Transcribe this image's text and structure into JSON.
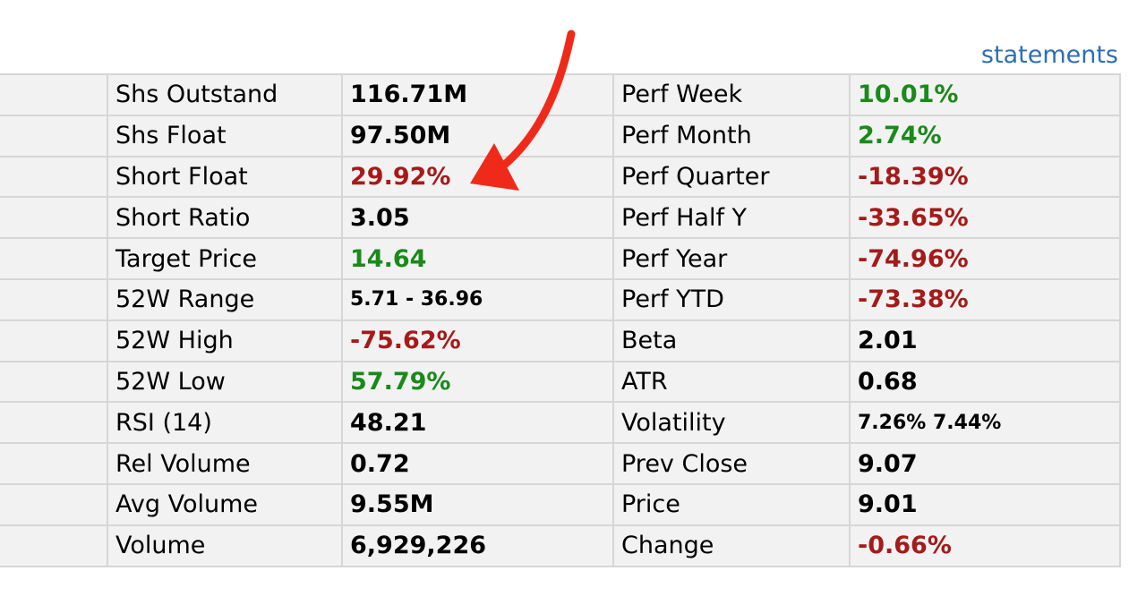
{
  "link": {
    "statements_label": "statements"
  },
  "colors": {
    "positive": "#1a8a1a",
    "negative": "#a51a1a",
    "link": "#2d6fb0",
    "annotation_arrow": "#f02a1a"
  },
  "annotation": {
    "icon": "red-arrow-icon",
    "points_to": "Short Float"
  },
  "rows": [
    {
      "label1": "Shs Outstand",
      "value1": "116.71M",
      "tone1": "",
      "label2": "Perf Week",
      "value2": "10.01%",
      "tone2": "pos"
    },
    {
      "label1": "Shs Float",
      "value1": "97.50M",
      "tone1": "",
      "label2": "Perf Month",
      "value2": "2.74%",
      "tone2": "pos"
    },
    {
      "label1": "Short Float",
      "value1": "29.92%",
      "tone1": "neg",
      "label2": "Perf Quarter",
      "value2": "-18.39%",
      "tone2": "neg"
    },
    {
      "label1": "Short Ratio",
      "value1": "3.05",
      "tone1": "",
      "label2": "Perf Half Y",
      "value2": "-33.65%",
      "tone2": "neg"
    },
    {
      "label1": "Target Price",
      "value1": "14.64",
      "tone1": "pos",
      "label2": "Perf Year",
      "value2": "-74.96%",
      "tone2": "neg"
    },
    {
      "label1": "52W Range",
      "value1": "5.71 - 36.96",
      "tone1": "small",
      "label2": "Perf YTD",
      "value2": "-73.38%",
      "tone2": "neg"
    },
    {
      "label1": "52W High",
      "value1": "-75.62%",
      "tone1": "neg",
      "label2": "Beta",
      "value2": "2.01",
      "tone2": ""
    },
    {
      "label1": "52W Low",
      "value1": "57.79%",
      "tone1": "pos",
      "label2": "ATR",
      "value2": "0.68",
      "tone2": ""
    },
    {
      "label1": "RSI (14)",
      "value1": "48.21",
      "tone1": "",
      "label2": "Volatility",
      "value2": "7.26% 7.44%",
      "tone2": "small"
    },
    {
      "label1": "Rel Volume",
      "value1": "0.72",
      "tone1": "",
      "label2": "Prev Close",
      "value2": "9.07",
      "tone2": ""
    },
    {
      "label1": "Avg Volume",
      "value1": "9.55M",
      "tone1": "",
      "label2": "Price",
      "value2": "9.01",
      "tone2": ""
    },
    {
      "label1": "Volume",
      "value1": "6,929,226",
      "tone1": "",
      "label2": "Change",
      "value2": "-0.66%",
      "tone2": "neg"
    }
  ]
}
